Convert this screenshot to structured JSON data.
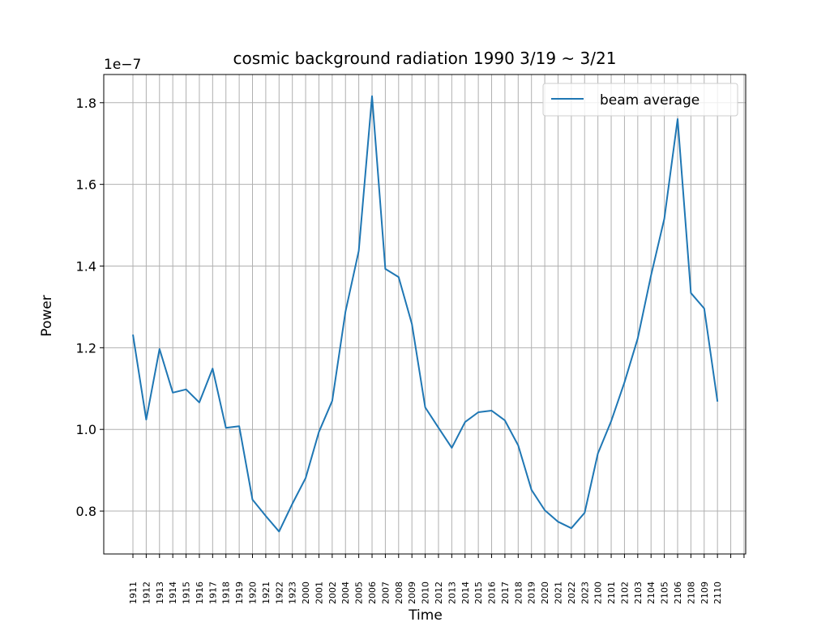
{
  "chart_data": {
    "type": "line",
    "title": "cosmic background radiation 1990 3/19 ~ 3/21",
    "xlabel": "Time",
    "ylabel": "Power",
    "y_offset_label": "1e−7",
    "ylim": [
      0.695,
      1.869
    ],
    "yticks": [
      0.8,
      1.0,
      1.2,
      1.4,
      1.6,
      1.8
    ],
    "ytick_labels": [
      "0.8",
      "1.0",
      "1.2",
      "1.4",
      "1.6",
      "1.8"
    ],
    "grid": true,
    "legend_position": "upper right",
    "extra_empty_ticks": 2,
    "series": [
      {
        "name": "beam average",
        "color": "#1f77b4",
        "x": [
          "1911",
          "1912",
          "1913",
          "1914",
          "1915",
          "1916",
          "1917",
          "1918",
          "1919",
          "1920",
          "1921",
          "1922",
          "1923",
          "2000",
          "2001",
          "2002",
          "2004",
          "2005",
          "2006",
          "2007",
          "2008",
          "2009",
          "2010",
          "2012",
          "2013",
          "2014",
          "2015",
          "2016",
          "2017",
          "2018",
          "2019",
          "2020",
          "2021",
          "2022",
          "2023",
          "2100",
          "2101",
          "2102",
          "2103",
          "2104",
          "2105",
          "2106",
          "2108",
          "2109",
          "2110"
        ],
        "values": [
          1.232,
          1.024,
          1.197,
          1.09,
          1.098,
          1.066,
          1.149,
          1.004,
          1.008,
          0.828,
          0.788,
          0.75,
          0.818,
          0.881,
          0.994,
          1.07,
          1.288,
          1.437,
          1.816,
          1.393,
          1.373,
          1.258,
          1.054,
          1.004,
          0.955,
          1.018,
          1.042,
          1.046,
          1.022,
          0.961,
          0.852,
          0.802,
          0.774,
          0.758,
          0.796,
          0.941,
          1.02,
          1.115,
          1.223,
          1.377,
          1.516,
          1.76,
          1.334,
          1.296,
          1.068
        ]
      }
    ]
  }
}
